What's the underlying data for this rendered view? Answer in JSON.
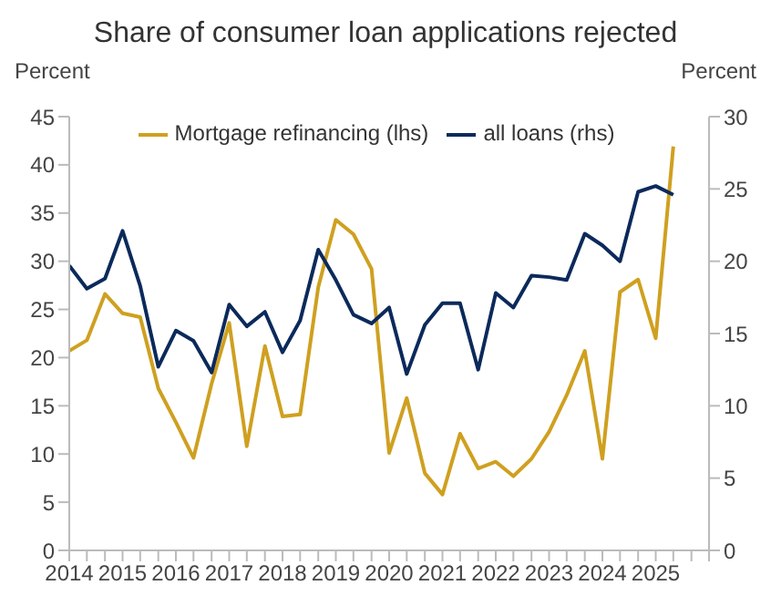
{
  "chart_data": {
    "type": "line",
    "title": "Share of consumer loan applications rejected",
    "ylabel": "Percent",
    "y2label": "Percent",
    "x": [
      2014,
      2014.33,
      2014.67,
      2015,
      2015.33,
      2015.67,
      2016,
      2016.33,
      2016.67,
      2017,
      2017.33,
      2017.67,
      2018,
      2018.33,
      2018.67,
      2019,
      2019.33,
      2019.67,
      2020,
      2020.33,
      2020.67,
      2021,
      2021.33,
      2021.67,
      2022,
      2022.33,
      2022.67,
      2023,
      2023.33,
      2023.67,
      2024,
      2024.33,
      2024.67,
      2025,
      2025.33
    ],
    "series": [
      {
        "name": "Mortgage refinancing (lhs)",
        "color": "#cfa020",
        "values": [
          20.7,
          21.8,
          26.6,
          24.6,
          24.2,
          16.8,
          13.3,
          9.6,
          17.3,
          23.6,
          10.8,
          21.2,
          13.9,
          14.1,
          27.3,
          34.3,
          32.8,
          29.2,
          10.1,
          15.8,
          8.0,
          5.8,
          12.1,
          8.5,
          9.2,
          7.7,
          9.5,
          12.3,
          16.1,
          20.7,
          9.5,
          26.8,
          28.1,
          22.0,
          41.9
        ]
      },
      {
        "name": "all loans (rhs)",
        "color": "#0b2a5b",
        "axis": "y2",
        "values": [
          19.7,
          18.1,
          18.8,
          22.1,
          18.3,
          12.7,
          15.2,
          14.5,
          12.3,
          17.0,
          15.5,
          16.5,
          13.7,
          15.9,
          20.8,
          18.7,
          16.3,
          15.7,
          16.8,
          12.2,
          15.6,
          17.1,
          17.1,
          12.5,
          17.8,
          16.8,
          19.0,
          18.9,
          18.7,
          21.9,
          21.1,
          20.0,
          24.8,
          25.2,
          24.6
        ]
      }
    ],
    "xlim": [
      2014,
      2026
    ],
    "xticks": [
      2014,
      {
        "value": 2014.33,
        "label": null
      },
      {
        "value": 2014.67,
        "label": null
      },
      2015,
      {
        "value": 2015.33,
        "label": null
      },
      {
        "value": 2015.67,
        "label": null
      },
      2016,
      {
        "value": 2016.33,
        "label": null
      },
      {
        "value": 2016.67,
        "label": null
      },
      2017,
      {
        "value": 2017.33,
        "label": null
      },
      {
        "value": 2017.67,
        "label": null
      },
      2018,
      {
        "value": 2018.33,
        "label": null
      },
      {
        "value": 2018.67,
        "label": null
      },
      2019,
      {
        "value": 2019.33,
        "label": null
      },
      {
        "value": 2019.67,
        "label": null
      },
      2020,
      {
        "value": 2020.33,
        "label": null
      },
      {
        "value": 2020.67,
        "label": null
      },
      2021,
      {
        "value": 2021.33,
        "label": null
      },
      {
        "value": 2021.67,
        "label": null
      },
      2022,
      {
        "value": 2022.33,
        "label": null
      },
      {
        "value": 2022.67,
        "label": null
      },
      2023,
      {
        "value": 2023.33,
        "label": null
      },
      {
        "value": 2023.67,
        "label": null
      },
      2024,
      {
        "value": 2024.33,
        "label": null
      },
      {
        "value": 2024.67,
        "label": null
      },
      2025,
      {
        "value": 2025.33,
        "label": null
      },
      {
        "value": 2025.67,
        "label": null
      },
      {
        "value": 2026,
        "label": null
      }
    ],
    "ylim": [
      0,
      45
    ],
    "yticks": [
      0,
      5,
      10,
      15,
      20,
      25,
      30,
      35,
      40,
      45
    ],
    "y2lim": [
      0,
      30
    ],
    "y2ticks": [
      0,
      5,
      10,
      15,
      20,
      25,
      30
    ],
    "legend": "top",
    "grid": false,
    "marker": "none",
    "line_style": "solid"
  }
}
